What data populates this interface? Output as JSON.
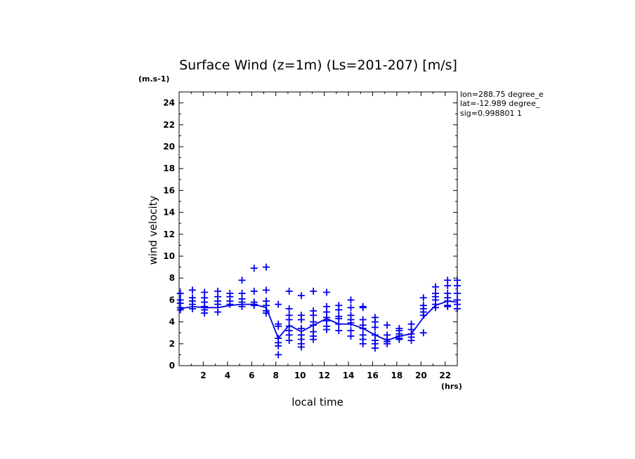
{
  "chart_data": {
    "type": "scatter",
    "title": "Surface Wind (z=1m) (Ls=201-207) [m/s]",
    "y_unit": "(m.s-1)",
    "x_unit": "(hrs)",
    "xlabel": "local time",
    "ylabel": "wind velocity",
    "xlim": [
      0,
      23
    ],
    "ylim": [
      0,
      25
    ],
    "x_ticks": [
      2,
      4,
      6,
      8,
      10,
      12,
      14,
      16,
      18,
      20,
      22
    ],
    "y_ticks": [
      0,
      2,
      4,
      6,
      8,
      10,
      12,
      14,
      16,
      18,
      20,
      22,
      24
    ],
    "info_lines": [
      "lon=288.75 degree_e",
      "lat=-12.989 degree_",
      "sig=0.998801 1"
    ],
    "color": "#0000ee",
    "grid": false,
    "scatter": [
      {
        "x": 0.1,
        "y": [
          6.6,
          6.0,
          5.7,
          5.3,
          5.1
        ]
      },
      {
        "x": 1.1,
        "y": [
          6.9,
          6.2,
          5.9,
          5.6,
          5.2
        ]
      },
      {
        "x": 2.1,
        "y": [
          6.7,
          6.2,
          5.8,
          5.4,
          5.1,
          4.8
        ]
      },
      {
        "x": 3.2,
        "y": [
          6.8,
          6.3,
          5.9,
          5.6,
          4.9
        ]
      },
      {
        "x": 4.2,
        "y": [
          6.6,
          6.3,
          5.9,
          5.6
        ]
      },
      {
        "x": 5.2,
        "y": [
          7.8,
          6.6,
          6.1,
          5.8,
          5.4
        ]
      },
      {
        "x": 6.2,
        "y": [
          8.9,
          6.8,
          5.8,
          5.6,
          5.5
        ]
      },
      {
        "x": 7.2,
        "y": [
          9.0,
          6.9,
          5.9,
          5.5,
          5.0,
          4.8
        ]
      },
      {
        "x": 8.2,
        "y": [
          5.6,
          3.8,
          3.6,
          2.5,
          2.1,
          1.8,
          1.0
        ]
      },
      {
        "x": 9.1,
        "y": [
          6.8,
          5.2,
          4.6,
          4.2,
          3.6,
          3.2,
          2.8,
          2.3
        ]
      },
      {
        "x": 10.1,
        "y": [
          6.4,
          4.6,
          4.2,
          3.4,
          2.8,
          2.4,
          2.0,
          1.7
        ]
      },
      {
        "x": 11.1,
        "y": [
          6.8,
          5.0,
          4.6,
          4.0,
          3.7,
          3.1,
          2.7,
          2.4
        ]
      },
      {
        "x": 12.2,
        "y": [
          6.7,
          5.4,
          4.9,
          4.4,
          4.1,
          3.6,
          3.3
        ]
      },
      {
        "x": 13.2,
        "y": [
          5.5,
          5.1,
          4.5,
          4.3,
          3.8,
          3.2
        ]
      },
      {
        "x": 14.2,
        "y": [
          6.0,
          5.3,
          4.6,
          4.2,
          3.9,
          3.2,
          2.7
        ]
      },
      {
        "x": 15.2,
        "y": [
          5.4,
          5.3,
          4.2,
          3.7,
          3.4,
          2.8,
          2.4,
          2.0
        ]
      },
      {
        "x": 16.2,
        "y": [
          4.4,
          4.0,
          3.5,
          2.8,
          2.3,
          2.0,
          1.6
        ]
      },
      {
        "x": 17.2,
        "y": [
          3.7,
          2.8,
          2.4,
          2.2,
          2.0
        ]
      },
      {
        "x": 18.2,
        "y": [
          3.4,
          3.2,
          2.9,
          2.7,
          2.5,
          2.4
        ]
      },
      {
        "x": 19.2,
        "y": [
          3.8,
          3.3,
          2.9,
          2.6,
          2.3
        ]
      },
      {
        "x": 20.2,
        "y": [
          6.2,
          5.5,
          5.2,
          4.9,
          4.6,
          3.0
        ]
      },
      {
        "x": 21.2,
        "y": [
          7.2,
          6.6,
          6.3,
          6.0,
          5.6,
          5.3
        ]
      },
      {
        "x": 22.2,
        "y": [
          7.8,
          7.3,
          6.6,
          6.2,
          5.9,
          5.5,
          5.4
        ]
      },
      {
        "x": 23.0,
        "y": [
          7.8,
          7.3,
          6.6,
          6.0,
          5.6,
          5.2
        ]
      }
    ],
    "mean_line": {
      "x": [
        0.1,
        1.1,
        2.1,
        3.2,
        4.2,
        5.2,
        6.2,
        7.2,
        8.2,
        9.1,
        10.1,
        11.1,
        12.2,
        13.2,
        14.2,
        15.2,
        16.2,
        17.2,
        18.2,
        19.2,
        20.2,
        21.2,
        22.2,
        23.0
      ],
      "y": [
        5.2,
        5.4,
        5.3,
        5.3,
        5.5,
        5.6,
        5.6,
        5.3,
        2.5,
        3.7,
        3.1,
        3.7,
        4.3,
        3.8,
        3.8,
        3.4,
        2.8,
        2.3,
        2.7,
        2.9,
        4.4,
        5.5,
        5.9,
        5.8
      ]
    }
  }
}
